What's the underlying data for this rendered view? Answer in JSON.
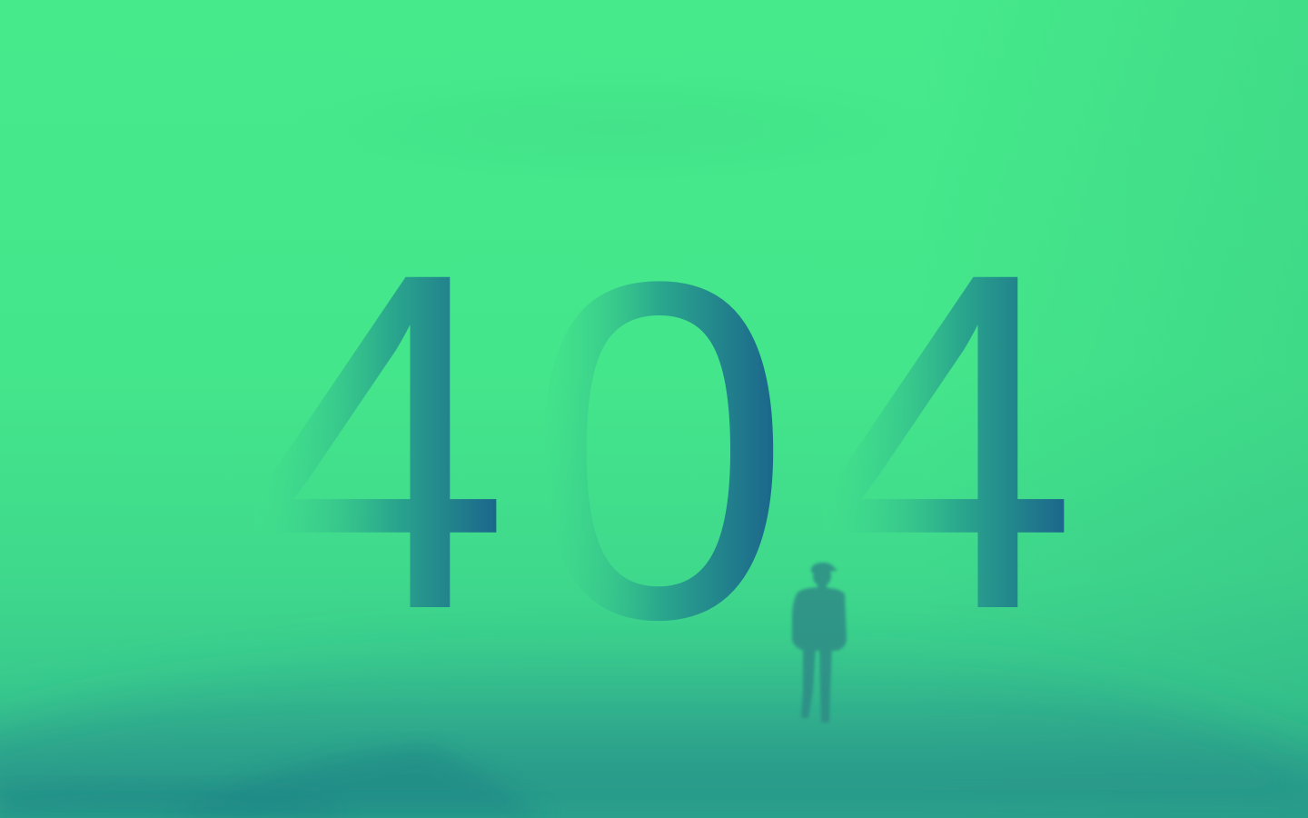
{
  "error_page": {
    "code_digits": [
      "4",
      "0",
      "4"
    ]
  },
  "colors": {
    "background_top": "#46ea8b",
    "background_bottom": "#2fae8e",
    "digit_dark": "#1b5e8c",
    "digit_light": "#44e68b",
    "hill": "#2a9a8c",
    "figure": "#2f8c86"
  },
  "icons": {
    "figure": "walking-person-silhouette"
  }
}
